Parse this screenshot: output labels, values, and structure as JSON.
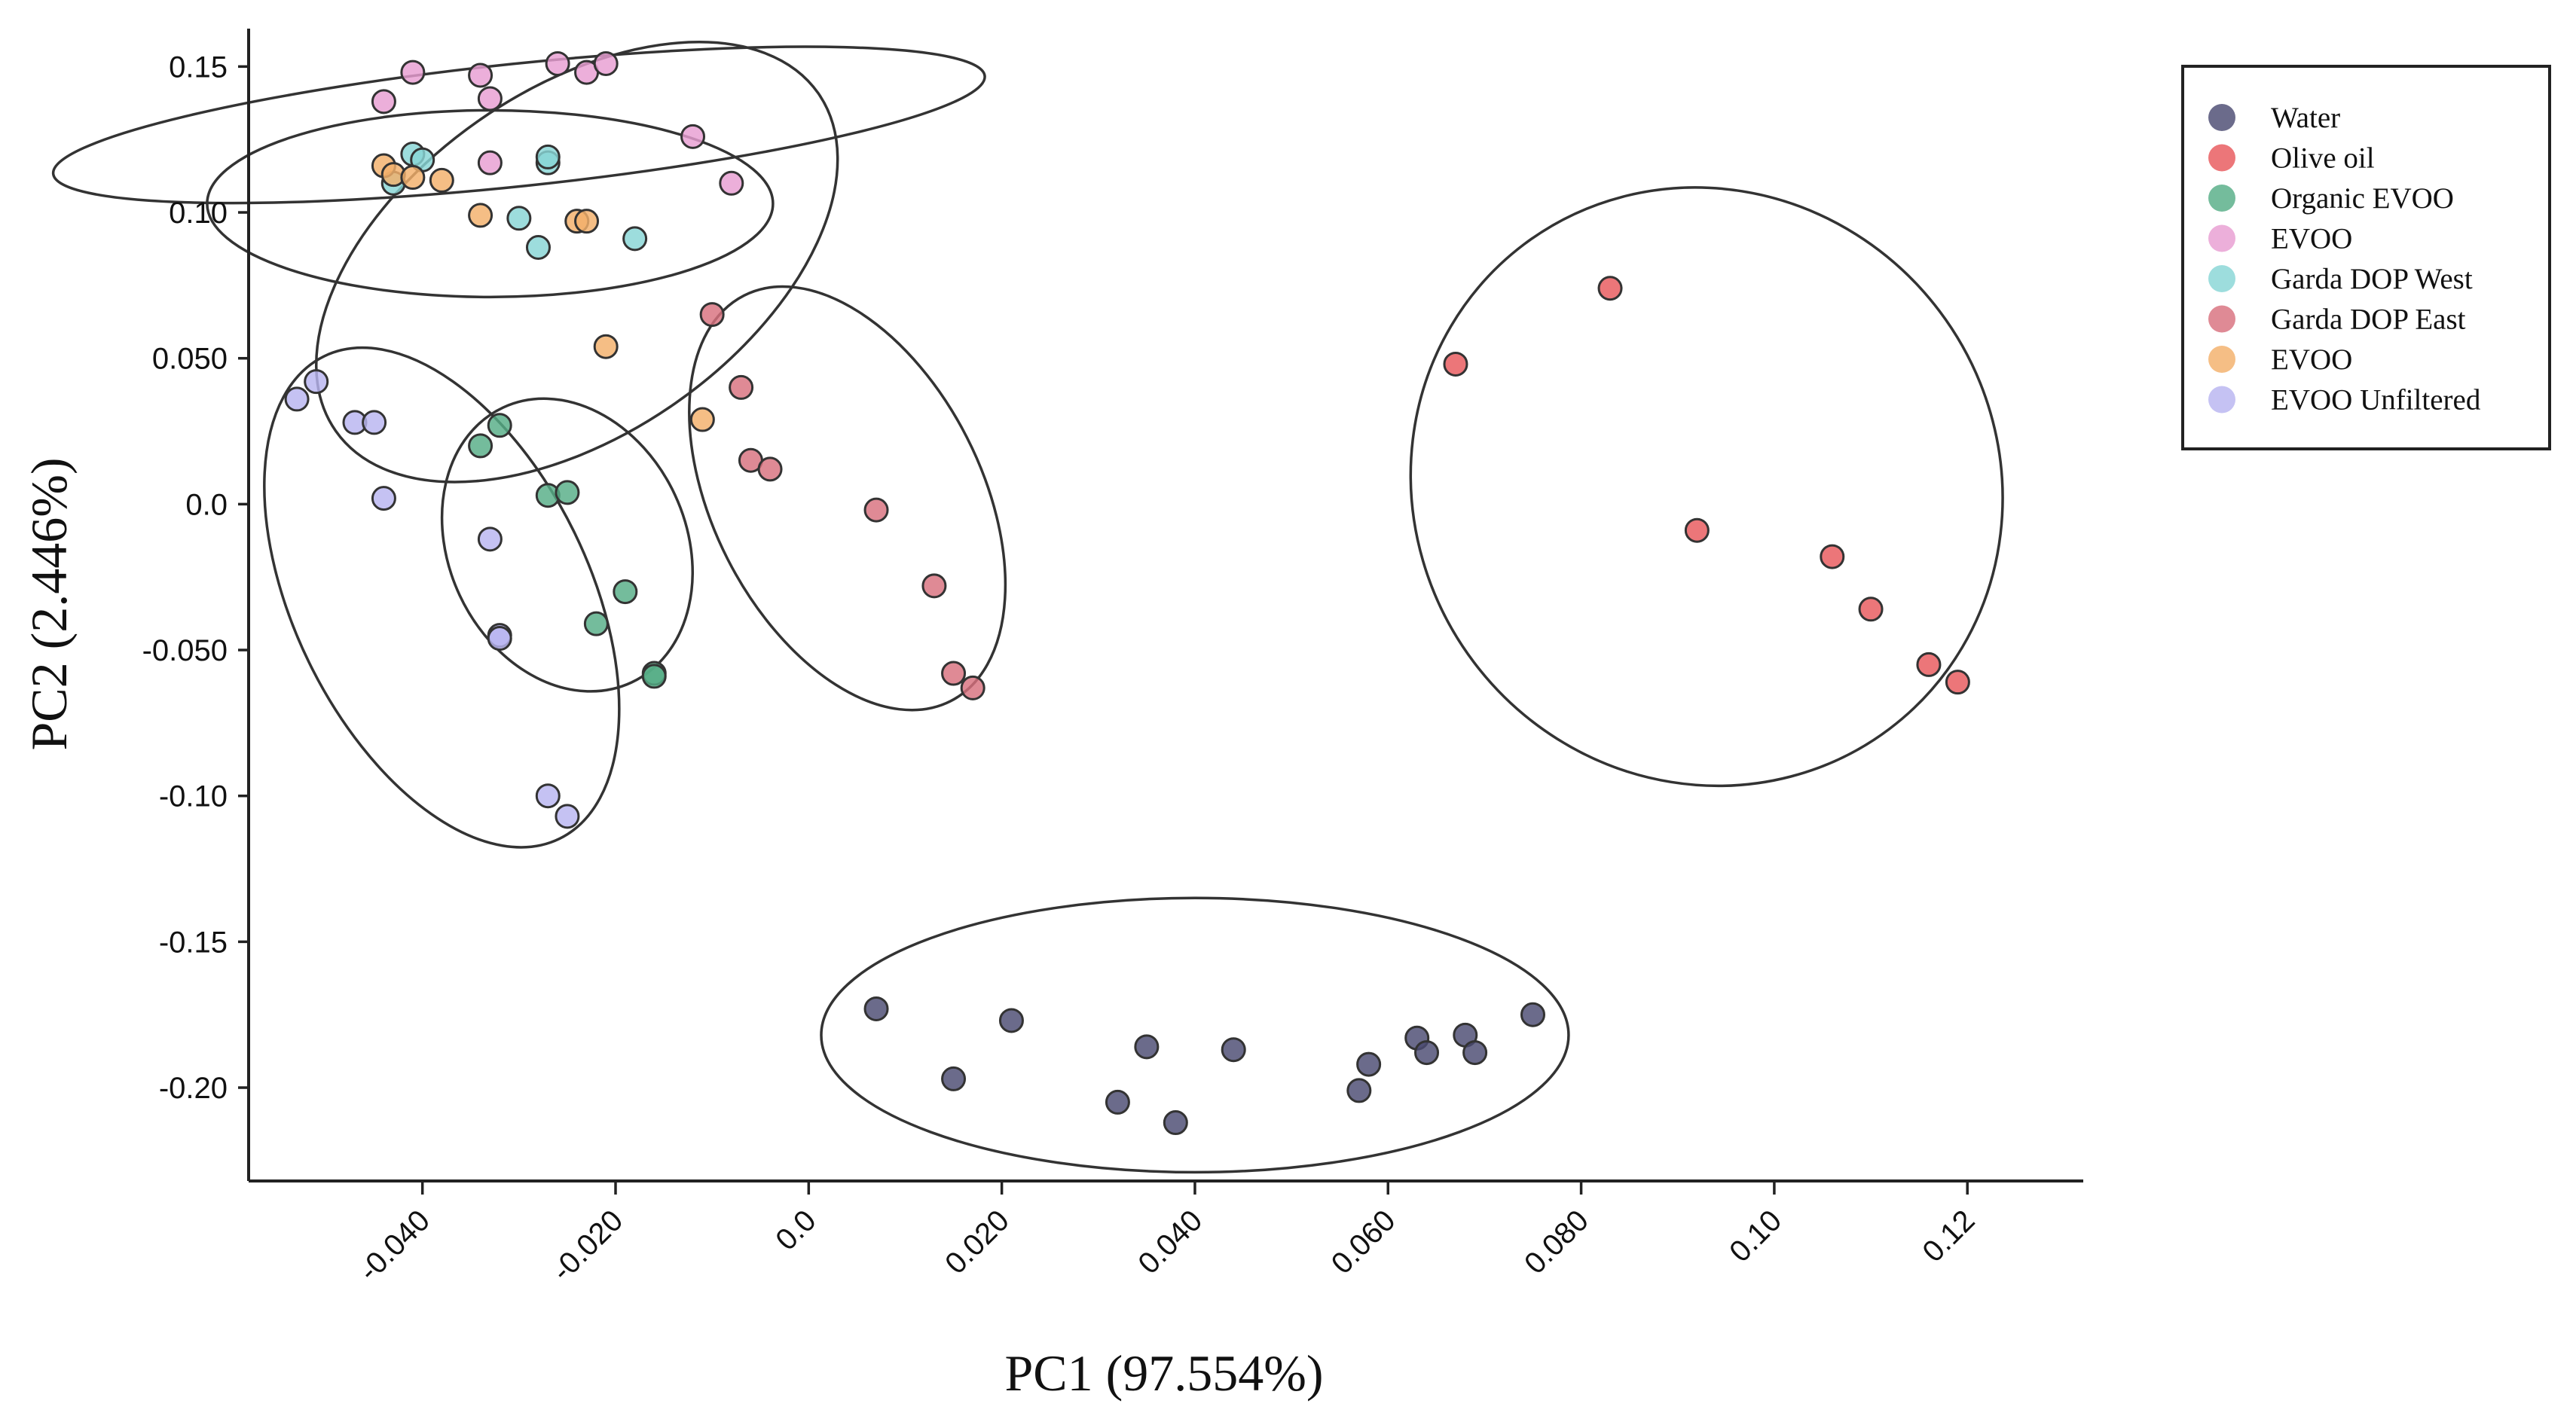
{
  "chart_data": {
    "type": "scatter",
    "title": "",
    "xlabel": "PC1 (97.554%)",
    "ylabel": "PC2 (2.446%)",
    "xlim": [
      -0.058,
      0.132
    ],
    "ylim": [
      -0.232,
      0.163
    ],
    "xticks": [
      -0.04,
      -0.02,
      0.0,
      0.02,
      0.04,
      0.06,
      0.08,
      0.1,
      0.12
    ],
    "xtick_labels": [
      "-0.040",
      "-0.020",
      "0.0",
      "0.020",
      "0.040",
      "0.060",
      "0.080",
      "0.10",
      "0.12"
    ],
    "yticks": [
      0.15,
      0.1,
      0.05,
      0.0,
      -0.05,
      -0.1,
      -0.15,
      -0.2
    ],
    "ytick_labels": [
      "0.15",
      "0.10",
      "0.050",
      "0.0",
      "-0.050",
      "-0.10",
      "-0.15",
      "-0.20"
    ],
    "grid": false,
    "legend_position": "top-right",
    "series": [
      {
        "name": "Water",
        "color": "#4a4a72",
        "points": [
          [
            0.007,
            -0.173
          ],
          [
            0.015,
            -0.197
          ],
          [
            0.021,
            -0.177
          ],
          [
            0.032,
            -0.205
          ],
          [
            0.035,
            -0.186
          ],
          [
            0.038,
            -0.212
          ],
          [
            0.044,
            -0.187
          ],
          [
            0.057,
            -0.201
          ],
          [
            0.058,
            -0.192
          ],
          [
            0.063,
            -0.183
          ],
          [
            0.064,
            -0.188
          ],
          [
            0.068,
            -0.182
          ],
          [
            0.069,
            -0.188
          ],
          [
            0.075,
            -0.175
          ]
        ]
      },
      {
        "name": "Olive oil",
        "color": "#e8585c",
        "points": [
          [
            0.067,
            0.048
          ],
          [
            0.083,
            0.074
          ],
          [
            0.092,
            -0.009
          ],
          [
            0.106,
            -0.018
          ],
          [
            0.11,
            -0.036
          ],
          [
            0.116,
            -0.055
          ],
          [
            0.119,
            -0.061
          ]
        ]
      },
      {
        "name": "Organic EVOO",
        "color": "#55ad86",
        "points": [
          [
            -0.034,
            0.02
          ],
          [
            -0.032,
            0.027
          ],
          [
            -0.027,
            0.003
          ],
          [
            -0.025,
            0.004
          ],
          [
            -0.022,
            -0.041
          ],
          [
            -0.019,
            -0.03
          ],
          [
            -0.016,
            -0.058
          ],
          [
            -0.016,
            -0.059
          ]
        ]
      },
      {
        "name": "EVOO",
        "color": "#e89ed2",
        "points": [
          [
            -0.044,
            0.138
          ],
          [
            -0.041,
            0.148
          ],
          [
            -0.034,
            0.147
          ],
          [
            -0.033,
            0.139
          ],
          [
            -0.033,
            0.117
          ],
          [
            -0.026,
            0.151
          ],
          [
            -0.023,
            0.148
          ],
          [
            -0.021,
            0.151
          ],
          [
            -0.012,
            0.126
          ],
          [
            -0.008,
            0.11
          ]
        ]
      },
      {
        "name": "Garda DOP West",
        "color": "#88d6d6",
        "points": [
          [
            -0.043,
            0.11
          ],
          [
            -0.041,
            0.12
          ],
          [
            -0.04,
            0.118
          ],
          [
            -0.03,
            0.098
          ],
          [
            -0.028,
            0.088
          ],
          [
            -0.027,
            0.117
          ],
          [
            -0.027,
            0.119
          ],
          [
            -0.018,
            0.091
          ]
        ]
      },
      {
        "name": "Garda DOP East",
        "color": "#d8707e",
        "points": [
          [
            -0.01,
            0.065
          ],
          [
            -0.007,
            0.04
          ],
          [
            -0.006,
            0.015
          ],
          [
            -0.004,
            0.012
          ],
          [
            0.007,
            -0.002
          ],
          [
            0.013,
            -0.028
          ],
          [
            0.015,
            -0.058
          ],
          [
            0.017,
            -0.063
          ]
        ]
      },
      {
        "name": "EVOO",
        "color": "#f3b06a",
        "points": [
          [
            -0.044,
            0.116
          ],
          [
            -0.043,
            0.113
          ],
          [
            -0.041,
            0.112
          ],
          [
            -0.038,
            0.111
          ],
          [
            -0.034,
            0.099
          ],
          [
            -0.024,
            0.097
          ],
          [
            -0.023,
            0.097
          ],
          [
            -0.021,
            0.054
          ],
          [
            -0.011,
            0.029
          ]
        ]
      },
      {
        "name": "EVOO Unfiltered",
        "color": "#b8b4f0",
        "points": [
          [
            -0.053,
            0.036
          ],
          [
            -0.051,
            0.042
          ],
          [
            -0.047,
            0.028
          ],
          [
            -0.045,
            0.028
          ],
          [
            -0.044,
            0.002
          ],
          [
            -0.033,
            -0.012
          ],
          [
            -0.032,
            -0.045
          ],
          [
            -0.032,
            -0.046
          ],
          [
            -0.027,
            -0.1
          ],
          [
            -0.025,
            -0.107
          ]
        ]
      }
    ],
    "ellipses": [
      {
        "group": "EVOO",
        "center": [
          -0.03,
          0.13
        ],
        "semi_axes": [
          0.0485,
          0.021
        ],
        "angle_deg": -6
      },
      {
        "group": "Garda DOP West",
        "center": [
          -0.033,
          0.103
        ],
        "semi_axes": [
          0.0293,
          0.032
        ],
        "angle_deg": 0
      },
      {
        "group": "EVOO",
        "center": [
          -0.024,
          0.083
        ],
        "semi_axes": [
          0.0305,
          0.059
        ],
        "angle_deg": -35
      },
      {
        "group": "EVOO Unfiltered",
        "center": [
          -0.038,
          -0.032
        ],
        "semi_axes": [
          0.0153,
          0.092
        ],
        "angle_deg": -26
      },
      {
        "group": "Organic EVOO",
        "center": [
          -0.025,
          -0.014
        ],
        "semi_axes": [
          0.0123,
          0.052
        ],
        "angle_deg": -25
      },
      {
        "group": "Garda DOP East",
        "center": [
          0.004,
          0.002
        ],
        "semi_axes": [
          0.0139,
          0.078
        ],
        "angle_deg": -27
      },
      {
        "group": "Olive oil",
        "center": [
          0.093,
          0.006
        ],
        "semi_axes": [
          0.0302,
          0.104
        ],
        "angle_deg": -37
      },
      {
        "group": "Water",
        "center": [
          0.04,
          -0.182
        ],
        "semi_axes": [
          0.0387,
          0.047
        ],
        "angle_deg": 0
      }
    ]
  }
}
